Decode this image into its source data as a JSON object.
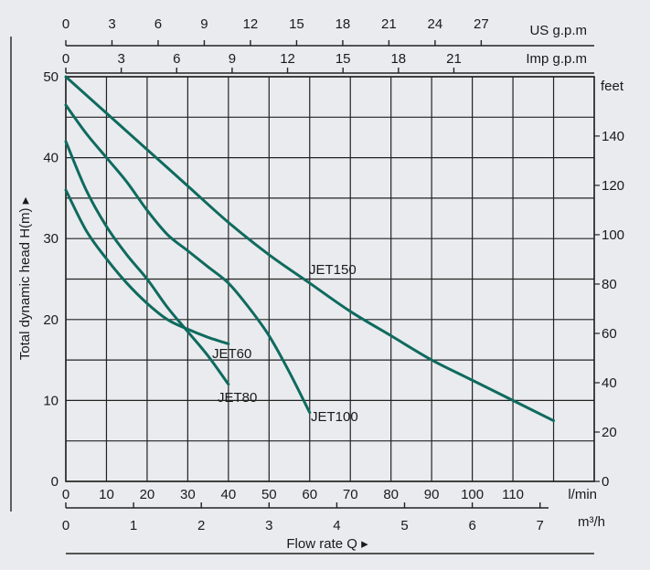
{
  "chart_data": {
    "type": "line",
    "xlabel": "Flow  rate Q ▸",
    "ylabel": "Total dynamic head H(m) ▸",
    "x_units_primary": "l/min",
    "xlim": [
      0,
      130
    ],
    "ylim": [
      0,
      50
    ],
    "grid": true,
    "x_ticks": [
      0,
      10,
      20,
      30,
      40,
      50,
      60,
      70,
      80,
      90,
      100,
      110
    ],
    "y_ticks": [
      0,
      10,
      20,
      30,
      40,
      50
    ],
    "secondary_axes": {
      "m3h": {
        "label": "m³/h",
        "ticks": [
          0,
          1,
          2,
          3,
          4,
          5,
          6,
          7
        ]
      },
      "us_gpm": {
        "label": "US g.p.m",
        "ticks": [
          0,
          3,
          6,
          9,
          12,
          15,
          18,
          21,
          24,
          27
        ]
      },
      "imp_gpm": {
        "label": "Imp g.p.m",
        "ticks": [
          0,
          3,
          6,
          9,
          12,
          15,
          18,
          21
        ]
      },
      "feet": {
        "label": "feet",
        "ticks": [
          0,
          20,
          40,
          60,
          80,
          100,
          120,
          140
        ]
      }
    },
    "series": [
      {
        "name": "JET60",
        "x": [
          0,
          5,
          10,
          15,
          20,
          25,
          30,
          35,
          40
        ],
        "y": [
          36,
          31,
          27.5,
          24.5,
          22,
          20,
          18.8,
          17.8,
          17
        ]
      },
      {
        "name": "JET80",
        "x": [
          0,
          5,
          10,
          15,
          20,
          25,
          30,
          35,
          40
        ],
        "y": [
          42,
          36,
          31.5,
          28,
          25,
          21.5,
          18.5,
          15.5,
          12
        ]
      },
      {
        "name": "JET100",
        "x": [
          0,
          5,
          10,
          15,
          20,
          25,
          30,
          35,
          40,
          45,
          50,
          55,
          60
        ],
        "y": [
          46.5,
          43,
          40,
          37,
          33.5,
          30.5,
          28.5,
          26.5,
          24.5,
          21.5,
          18,
          13.5,
          8.5
        ]
      },
      {
        "name": "JET150",
        "x": [
          0,
          10,
          20,
          30,
          40,
          50,
          60,
          70,
          80,
          90,
          100,
          110,
          120
        ],
        "y": [
          50,
          45.5,
          41,
          36.5,
          32,
          28,
          24.5,
          21,
          18,
          15,
          12.5,
          10,
          7.5
        ]
      }
    ],
    "curve_labels": [
      "JET60",
      "JET80",
      "JET100",
      "JET150"
    ]
  }
}
